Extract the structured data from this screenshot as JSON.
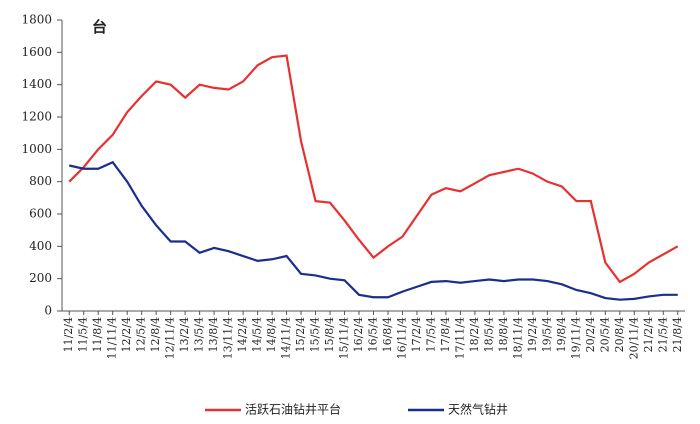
{
  "chart_data": {
    "type": "line",
    "unit_label": "台",
    "categories": [
      "11/2/4",
      "11/5/4",
      "11/8/4",
      "11/11/4",
      "12/2/4",
      "12/5/4",
      "12/8/4",
      "12/11/4",
      "13/2/4",
      "13/5/4",
      "13/8/4",
      "13/11/4",
      "14/2/4",
      "14/5/4",
      "14/8/4",
      "14/11/4",
      "15/2/4",
      "15/5/4",
      "15/8/4",
      "15/11/4",
      "16/2/4",
      "16/5/4",
      "16/8/4",
      "16/11/4",
      "17/2/4",
      "17/5/4",
      "17/8/4",
      "17/11/4",
      "18/2/4",
      "18/5/4",
      "18/8/4",
      "18/11/4",
      "19/2/4",
      "19/5/4",
      "19/8/4",
      "19/11/4",
      "20/2/4",
      "20/5/4",
      "20/8/4",
      "20/11/4",
      "21/2/4",
      "21/5/4",
      "21/8/4"
    ],
    "series": [
      {
        "name": "活跃石油钻井平台",
        "color": "#e8312f",
        "values": [
          800,
          890,
          1000,
          1090,
          1230,
          1330,
          1420,
          1400,
          1320,
          1400,
          1380,
          1370,
          1420,
          1520,
          1570,
          1580,
          1050,
          680,
          670,
          560,
          440,
          330,
          400,
          460,
          590,
          720,
          760,
          740,
          790,
          840,
          860,
          880,
          850,
          800,
          770,
          680,
          680,
          300,
          180,
          230,
          300,
          350,
          400
        ]
      },
      {
        "name": "天然气钻井",
        "color": "#1a2f8c",
        "values": [
          900,
          880,
          880,
          920,
          800,
          650,
          530,
          430,
          430,
          360,
          390,
          370,
          340,
          310,
          320,
          340,
          230,
          220,
          200,
          190,
          100,
          85,
          85,
          120,
          150,
          180,
          185,
          175,
          185,
          195,
          185,
          195,
          195,
          185,
          165,
          130,
          110,
          80,
          70,
          75,
          90,
          100,
          100
        ]
      }
    ],
    "ylim": [
      0,
      1800
    ],
    "yticks": [
      0,
      200,
      400,
      600,
      800,
      1000,
      1200,
      1400,
      1600,
      1800
    ],
    "grid": false
  }
}
